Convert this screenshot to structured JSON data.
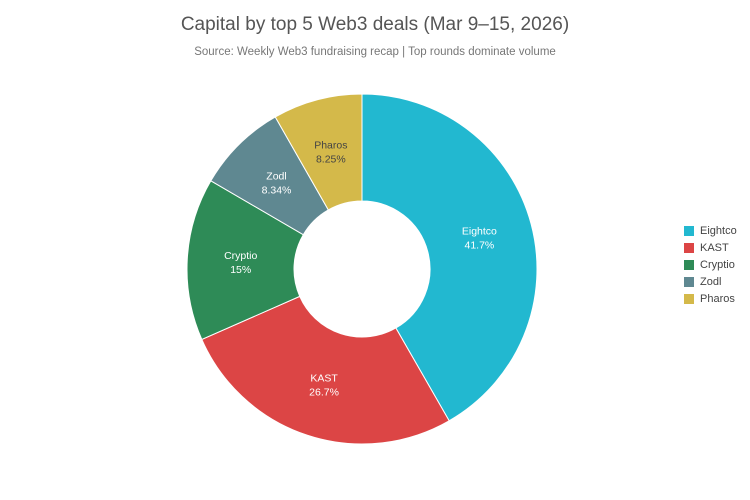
{
  "chart_data": {
    "type": "pie",
    "donut": true,
    "title": "Capital by top 5 Web3 deals (Mar 9–15, 2026)",
    "subtitle": "Source: Weekly Web3 fundraising recap | Top rounds dominate volume",
    "categories": [
      "Eightco",
      "KAST",
      "Cryptio",
      "Zodl",
      "Pharos"
    ],
    "values": [
      41.7,
      26.7,
      15,
      8.34,
      8.25
    ],
    "labels": [
      "41.7%",
      "26.7%",
      "15%",
      "8.34%",
      "8.25%"
    ],
    "colors": [
      "#22b8d0",
      "#dc4545",
      "#2e8b57",
      "#5f8891",
      "#d4b94a"
    ],
    "legend": "right"
  }
}
